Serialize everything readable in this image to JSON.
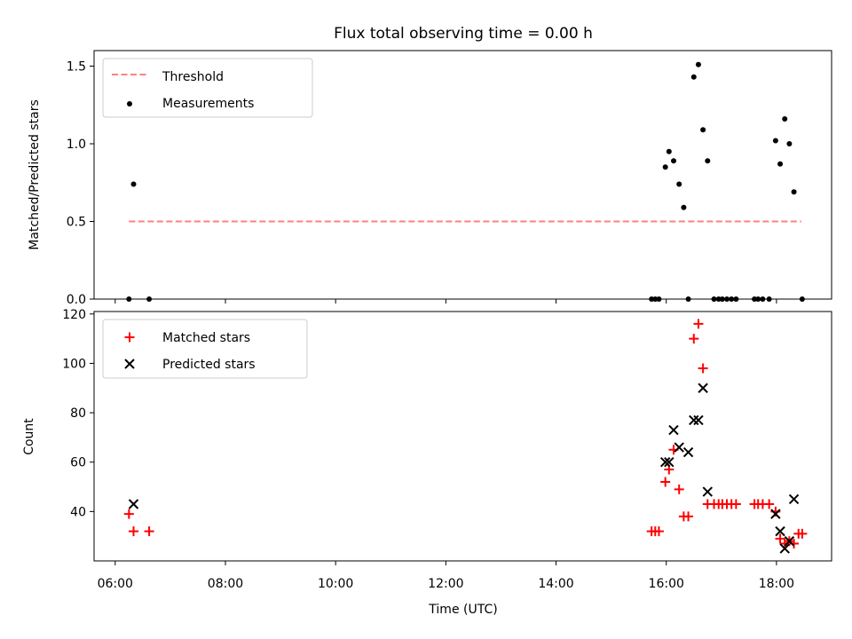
{
  "figure": {
    "title": "Flux total observing time = 0.00 h",
    "xlabel": "Time (UTC)"
  },
  "colors": {
    "threshold": "#ff8080",
    "measurements": "#000000",
    "matched": "#ff0000",
    "predicted": "#000000"
  },
  "chart_data": [
    {
      "type": "scatter",
      "name": "ratio-panel",
      "ylabel": "Matched/Predicted stars",
      "xlim": [
        "05:37",
        "19:00"
      ],
      "ylim": [
        0.0,
        1.6
      ],
      "xticks": [
        "06:00",
        "08:00",
        "10:00",
        "12:00",
        "14:00",
        "16:00",
        "18:00"
      ],
      "yticks": [
        "0.0",
        "0.5",
        "1.0",
        "1.5"
      ],
      "legend_position": "top-left",
      "series": [
        {
          "name": "Threshold",
          "kind": "dashed-line",
          "x": [
            "06:15",
            "18:27"
          ],
          "y": [
            0.5,
            0.5
          ]
        },
        {
          "name": "Measurements",
          "kind": "dots",
          "x": [
            "06:15",
            "06:20",
            "06:37",
            "15:44",
            "15:48",
            "15:52",
            "15:59",
            "16:03",
            "16:08",
            "16:14",
            "16:19",
            "16:24",
            "16:30",
            "16:35",
            "16:40",
            "16:45",
            "16:52",
            "16:57",
            "17:01",
            "17:06",
            "17:11",
            "17:16",
            "17:36",
            "17:40",
            "17:45",
            "17:52",
            "17:59",
            "18:04",
            "18:09",
            "18:14",
            "18:19",
            "18:28"
          ],
          "y": [
            0.0,
            0.74,
            0.0,
            0.0,
            0.0,
            0.0,
            0.85,
            0.95,
            0.89,
            0.74,
            0.59,
            0.0,
            1.43,
            1.51,
            1.09,
            0.89,
            0.0,
            0.0,
            0.0,
            0.0,
            0.0,
            0.0,
            0.0,
            0.0,
            0.0,
            0.0,
            1.02,
            0.87,
            1.16,
            1.0,
            0.69,
            0.0
          ]
        }
      ]
    },
    {
      "type": "scatter",
      "name": "count-panel",
      "ylabel": "Count",
      "xlim": [
        "05:37",
        "19:00"
      ],
      "ylim": [
        20,
        121
      ],
      "xticks": [
        "06:00",
        "08:00",
        "10:00",
        "12:00",
        "14:00",
        "16:00",
        "18:00"
      ],
      "yticks": [
        "40",
        "60",
        "80",
        "100",
        "120"
      ],
      "legend_position": "top-left",
      "series": [
        {
          "name": "Matched stars",
          "marker": "plus",
          "x": [
            "06:15",
            "06:20",
            "06:37",
            "15:44",
            "15:48",
            "15:52",
            "15:59",
            "16:03",
            "16:08",
            "16:14",
            "16:19",
            "16:24",
            "16:30",
            "16:35",
            "16:40",
            "16:45",
            "16:52",
            "16:57",
            "17:01",
            "17:06",
            "17:11",
            "17:16",
            "17:36",
            "17:40",
            "17:45",
            "17:52",
            "17:59",
            "18:04",
            "18:09",
            "18:14",
            "18:19",
            "18:24",
            "18:28"
          ],
          "y": [
            39,
            32,
            32,
            32,
            32,
            32,
            52,
            57,
            65,
            49,
            38,
            38,
            110,
            116,
            98,
            43,
            43,
            43,
            43,
            43,
            43,
            43,
            43,
            43,
            43,
            43,
            40,
            29,
            27,
            28,
            27,
            31,
            31
          ]
        },
        {
          "name": "Predicted stars",
          "marker": "cross",
          "x": [
            "06:20",
            "15:59",
            "16:03",
            "16:08",
            "16:14",
            "16:24",
            "16:30",
            "16:35",
            "16:40",
            "16:45",
            "17:59",
            "18:04",
            "18:09",
            "18:14",
            "18:19"
          ],
          "y": [
            43,
            60,
            60,
            73,
            66,
            64,
            77,
            77,
            90,
            48,
            39,
            32,
            25,
            28,
            45
          ]
        }
      ]
    }
  ]
}
